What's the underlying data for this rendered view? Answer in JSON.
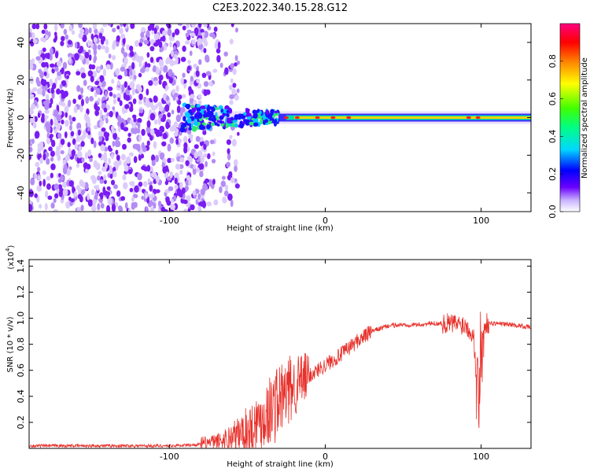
{
  "title": "C2E3.2022.340.15.28.G12",
  "chart_data": [
    {
      "type": "heatmap",
      "xlabel": "Height of straight line (km)",
      "ylabel": "Frequency (Hz)",
      "xlim": [
        -190,
        132
      ],
      "ylim": [
        -50,
        50
      ],
      "xticks": [
        -100,
        0,
        100
      ],
      "yticks": [
        -40,
        -20,
        0,
        20,
        40
      ],
      "noise_region_x": [
        -190,
        -75
      ],
      "band_center_hz": 0,
      "colorbar": {
        "label": "Normalized spectral amplitude",
        "range": [
          0,
          1
        ],
        "ticks": [
          "0.0",
          "0.2",
          "0.4",
          "0.6",
          "0.8"
        ],
        "colors": [
          "#ffffff",
          "#c9b3ff",
          "#6a00ff",
          "#0000ff",
          "#00d8ff",
          "#00ff80",
          "#40ff00",
          "#ffff00",
          "#ff8000",
          "#ff0000",
          "#ff0080"
        ]
      }
    },
    {
      "type": "line",
      "xlabel": "Height of straight line (km)",
      "ylabel": "SNR (10 * v/v)",
      "y_multiplier": "(x10",
      "y_multiplier_exp": "4",
      "y_multiplier_close": ")",
      "xlim": [
        -190,
        132
      ],
      "ylim": [
        0,
        1.45
      ],
      "xticks": [
        -100,
        0,
        100
      ],
      "yticks": [
        "0.2",
        "0.4",
        "0.6",
        "0.8",
        "1.0",
        "1.2",
        "1.4"
      ],
      "color": "#e8302a",
      "x": [
        -190,
        -150,
        -100,
        -80,
        -70,
        -60,
        -50,
        -40,
        -30,
        -20,
        -10,
        0,
        10,
        20,
        30,
        40,
        50,
        60,
        70,
        80,
        90,
        95,
        98,
        100,
        103,
        110,
        120,
        132
      ],
      "values": [
        0.02,
        0.02,
        0.02,
        0.03,
        0.05,
        0.08,
        0.14,
        0.24,
        0.36,
        0.48,
        0.56,
        0.64,
        0.72,
        0.82,
        0.9,
        0.94,
        0.95,
        0.95,
        0.96,
        0.96,
        0.95,
        0.88,
        0.4,
        0.9,
        0.96,
        0.96,
        0.95,
        0.93
      ]
    }
  ]
}
